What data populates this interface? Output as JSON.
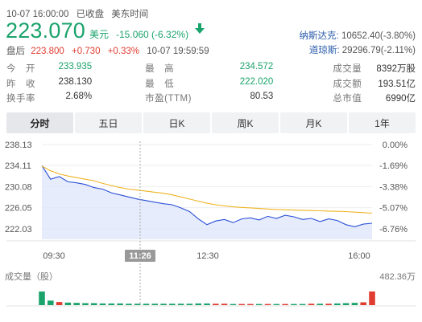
{
  "header": {
    "datetime": "10-07 16:00:00",
    "status": "已收盘",
    "timezone": "美东时间"
  },
  "quote": {
    "price": "223.070",
    "currency": "美元",
    "change": "-15.060 (-6.32%)",
    "direction_icon": "arrow-down-icon"
  },
  "after_hours": {
    "label": "盘后",
    "price": "223.800",
    "change": "+0.730",
    "percent": "+0.33%",
    "time": "10-07 19:59:59"
  },
  "indices": [
    {
      "name": "纳斯达克:",
      "value": "10652.40(-3.80%)"
    },
    {
      "name": "道琼斯:",
      "value": "29296.79(-2.11%)"
    }
  ],
  "stats": [
    [
      {
        "k": "今　开",
        "v": "233.935",
        "tone": "green"
      },
      {
        "k": "最　高",
        "v": "234.572",
        "tone": "green"
      },
      {
        "k": "成交量",
        "v": "8392万股",
        "tone": ""
      }
    ],
    [
      {
        "k": "昨　收",
        "v": "238.130",
        "tone": ""
      },
      {
        "k": "最　低",
        "v": "222.020",
        "tone": "green"
      },
      {
        "k": "成交额",
        "v": "193.51亿",
        "tone": ""
      }
    ],
    [
      {
        "k": "换手率",
        "v": "2.68%",
        "tone": ""
      },
      {
        "k": "市盈(TTM)",
        "v": "80.53",
        "tone": ""
      },
      {
        "k": "总市值",
        "v": "6990亿",
        "tone": ""
      }
    ]
  ],
  "tabs": [
    "分时",
    "五日",
    "日K",
    "周K",
    "月K",
    "1年"
  ],
  "active_tab": 0,
  "colors": {
    "green": "#1aa36b",
    "red": "#e03c31",
    "price_line": "#2a4fd6",
    "avg_line": "#f0b323",
    "area_fill": "#dfe6fb",
    "index_link": "#2a5caa"
  },
  "chart_data": {
    "type": "line",
    "title": "",
    "prev_close": 238.13,
    "ylim": [
      220.0,
      238.13
    ],
    "y_ticks_left": [
      "238.13",
      "234.11",
      "230.08",
      "226.05",
      "222.03"
    ],
    "y_ticks_right": [
      "0.00%",
      "-1.69%",
      "-3.38%",
      "-5.07%",
      "-6.76%"
    ],
    "x_ticks": [
      "09:30",
      "12:30",
      "16:00"
    ],
    "crosshair_label": "11:26",
    "volume_label": "成交量（股）",
    "volume_max_label": "482.36万",
    "x": [
      "09:30",
      "09:35",
      "09:40",
      "09:45",
      "09:50",
      "09:55",
      "10:00",
      "10:10",
      "10:20",
      "10:30",
      "10:40",
      "10:50",
      "11:00",
      "11:10",
      "11:20",
      "11:30",
      "11:40",
      "11:50",
      "12:00",
      "12:10",
      "12:20",
      "12:30",
      "12:40",
      "12:50",
      "13:00",
      "13:15",
      "13:30",
      "13:45",
      "14:00",
      "14:15",
      "14:30",
      "14:45",
      "15:00",
      "15:10",
      "15:20",
      "15:30",
      "15:40",
      "15:50",
      "16:00"
    ],
    "series": [
      {
        "values": [
          234.1,
          231.5,
          232.0,
          231.0,
          230.8,
          230.5,
          229.9,
          229.6,
          228.9,
          228.5,
          228.1,
          227.7,
          227.4,
          227.1,
          226.8,
          226.6,
          226.0,
          225.3,
          223.9,
          222.8,
          223.5,
          223.8,
          223.2,
          223.9,
          224.1,
          223.7,
          224.4,
          224.0,
          224.6,
          224.3,
          223.8,
          224.0,
          223.4,
          223.9,
          223.6,
          222.8,
          222.4,
          222.9,
          223.07
        ]
      },
      {
        "values": [
          234.0,
          233.1,
          232.5,
          232.1,
          231.8,
          231.5,
          231.2,
          230.7,
          230.3,
          229.9,
          229.6,
          229.4,
          229.2,
          229.0,
          228.8,
          228.5,
          228.1,
          227.7,
          227.3,
          226.9,
          226.6,
          226.4,
          226.2,
          226.1,
          226.0,
          225.9,
          225.8,
          225.7,
          225.65,
          225.6,
          225.55,
          225.5,
          225.45,
          225.4,
          225.35,
          225.3,
          225.2,
          225.1,
          225.0
        ]
      }
    ],
    "volume": [
      4.8,
      1.6,
      1.1,
      0.9,
      0.8,
      0.7,
      0.7,
      0.6,
      0.6,
      0.6,
      0.5,
      0.5,
      0.5,
      0.5,
      0.5,
      0.5,
      0.5,
      0.5,
      0.6,
      0.6,
      0.5,
      0.5,
      0.4,
      0.4,
      0.4,
      0.4,
      0.4,
      0.4,
      0.4,
      0.4,
      0.4,
      0.5,
      0.5,
      0.5,
      0.6,
      0.7,
      0.8,
      1.0,
      4.82
    ]
  }
}
